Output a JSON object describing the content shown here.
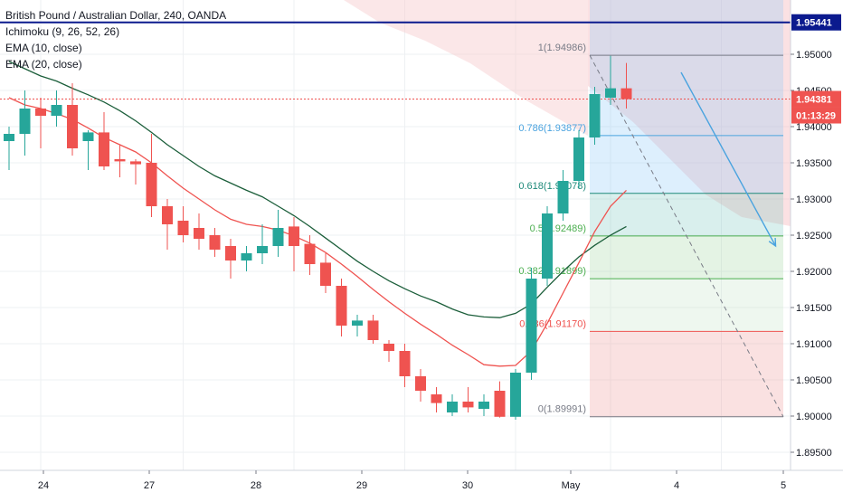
{
  "legend": {
    "title": "British Pound / Australian Dollar, 240, OANDA",
    "ichimoku": "Ichimoku (9, 26, 52, 26)",
    "ema10": "EMA (10, close)",
    "ema20": "EMA (20, close)"
  },
  "price_scale": {
    "ticks": [
      "1.95000",
      "1.94500",
      "1.94000",
      "1.93500",
      "1.93000",
      "1.92500",
      "1.92000",
      "1.91500",
      "1.91000",
      "1.90500",
      "1.90000",
      "1.89500"
    ],
    "tags": [
      {
        "label": "1.95441",
        "bg": "#0b1a8e",
        "fg": "#ffffff"
      },
      {
        "label": "1.94381",
        "bg": "#ef5350",
        "fg": "#ffffff"
      },
      {
        "label": "01:13:29",
        "bg": "#ef5350",
        "fg": "#ffffff"
      }
    ]
  },
  "time_scale": {
    "labels": [
      "24",
      "27",
      "28",
      "29",
      "30",
      "May",
      "4",
      "5"
    ]
  },
  "fib_labels": [
    {
      "text": "1(1.94986)",
      "color": "#787b86"
    },
    {
      "text": "0.786(1.93877)",
      "color": "#4aa3df"
    },
    {
      "text": "0.618(1.93078)",
      "color": "#1f8a7a"
    },
    {
      "text": "0.5(1.92489)",
      "color": "#4caf50"
    },
    {
      "text": "0.382(1.91899)",
      "color": "#4caf50"
    },
    {
      "text": "0.236(1.91170)",
      "color": "#ef5350"
    },
    {
      "text": "0(1.89991)",
      "color": "#787b86"
    }
  ],
  "colors": {
    "up": "#26a69a",
    "down": "#ef5350",
    "ema10": "#ef5350",
    "ema20": "#1b5e3a",
    "blue_line": "#0b1a8e",
    "arrow": "#4aa3df",
    "grid": "#eef0f3",
    "axis_text": "#131722"
  },
  "chart_data": {
    "type": "candlestick",
    "title": "British Pound / Australian Dollar, 240, OANDA",
    "timeframe": "240",
    "x_labels": [
      "24",
      "27",
      "28",
      "29",
      "30",
      "May",
      "4",
      "5"
    ],
    "ylim": [
      1.8925,
      1.9575
    ],
    "current_price": 1.94381,
    "countdown": "01:13:29",
    "horizontal_line": 1.95441,
    "candles": [
      {
        "o": 1.938,
        "h": 1.94,
        "l": 1.934,
        "c": 1.939
      },
      {
        "o": 1.939,
        "h": 1.945,
        "l": 1.936,
        "c": 1.9425
      },
      {
        "o": 1.9425,
        "h": 1.944,
        "l": 1.937,
        "c": 1.9415
      },
      {
        "o": 1.9415,
        "h": 1.945,
        "l": 1.94,
        "c": 1.943
      },
      {
        "o": 1.943,
        "h": 1.946,
        "l": 1.936,
        "c": 1.937
      },
      {
        "o": 1.938,
        "h": 1.9395,
        "l": 1.934,
        "c": 1.9392
      },
      {
        "o": 1.9392,
        "h": 1.942,
        "l": 1.934,
        "c": 1.9345
      },
      {
        "o": 1.9355,
        "h": 1.9375,
        "l": 1.933,
        "c": 1.9352
      },
      {
        "o": 1.9352,
        "h": 1.9355,
        "l": 1.932,
        "c": 1.9348
      },
      {
        "o": 1.935,
        "h": 1.939,
        "l": 1.9275,
        "c": 1.929
      },
      {
        "o": 1.929,
        "h": 1.93,
        "l": 1.923,
        "c": 1.9265
      },
      {
        "o": 1.927,
        "h": 1.929,
        "l": 1.924,
        "c": 1.925
      },
      {
        "o": 1.926,
        "h": 1.928,
        "l": 1.923,
        "c": 1.9245
      },
      {
        "o": 1.925,
        "h": 1.926,
        "l": 1.922,
        "c": 1.923
      },
      {
        "o": 1.9235,
        "h": 1.9245,
        "l": 1.919,
        "c": 1.9215
      },
      {
        "o": 1.9215,
        "h": 1.9235,
        "l": 1.92,
        "c": 1.9225
      },
      {
        "o": 1.9225,
        "h": 1.9265,
        "l": 1.921,
        "c": 1.9235
      },
      {
        "o": 1.9235,
        "h": 1.9285,
        "l": 1.922,
        "c": 1.926
      },
      {
        "o": 1.9262,
        "h": 1.9275,
        "l": 1.92,
        "c": 1.9235
      },
      {
        "o": 1.9238,
        "h": 1.925,
        "l": 1.9195,
        "c": 1.921
      },
      {
        "o": 1.9212,
        "h": 1.9225,
        "l": 1.917,
        "c": 1.918
      },
      {
        "o": 1.918,
        "h": 1.919,
        "l": 1.911,
        "c": 1.9125
      },
      {
        "o": 1.9125,
        "h": 1.914,
        "l": 1.911,
        "c": 1.9132
      },
      {
        "o": 1.9132,
        "h": 1.914,
        "l": 1.91,
        "c": 1.9105
      },
      {
        "o": 1.91,
        "h": 1.9105,
        "l": 1.9075,
        "c": 1.909
      },
      {
        "o": 1.909,
        "h": 1.91,
        "l": 1.904,
        "c": 1.9055
      },
      {
        "o": 1.9055,
        "h": 1.9065,
        "l": 1.902,
        "c": 1.9035
      },
      {
        "o": 1.903,
        "h": 1.904,
        "l": 1.9005,
        "c": 1.9018
      },
      {
        "o": 1.9005,
        "h": 1.903,
        "l": 1.9,
        "c": 1.902
      },
      {
        "o": 1.902,
        "h": 1.904,
        "l": 1.9005,
        "c": 1.9012
      },
      {
        "o": 1.901,
        "h": 1.903,
        "l": 1.9,
        "c": 1.902
      },
      {
        "o": 1.9035,
        "h": 1.9048,
        "l": 1.8998,
        "c": 1.8999
      },
      {
        "o": 1.8999,
        "h": 1.9065,
        "l": 1.8995,
        "c": 1.906
      },
      {
        "o": 1.906,
        "h": 1.9205,
        "l": 1.905,
        "c": 1.919
      },
      {
        "o": 1.919,
        "h": 1.929,
        "l": 1.918,
        "c": 1.928
      },
      {
        "o": 1.928,
        "h": 1.934,
        "l": 1.927,
        "c": 1.9325
      },
      {
        "o": 1.9325,
        "h": 1.9395,
        "l": 1.9315,
        "c": 1.9385
      },
      {
        "o": 1.9385,
        "h": 1.9455,
        "l": 1.9375,
        "c": 1.9445
      },
      {
        "o": 1.944,
        "h": 1.9498,
        "l": 1.943,
        "c": 1.9453
      },
      {
        "o": 1.9453,
        "h": 1.9488,
        "l": 1.9425,
        "c": 1.9438
      }
    ],
    "ema10": [
      1.944,
      1.943,
      1.9425,
      1.9418,
      1.941,
      1.9398,
      1.9385,
      1.9375,
      1.9365,
      1.935,
      1.9332,
      1.9315,
      1.93,
      1.9285,
      1.9272,
      1.9265,
      1.9262,
      1.9257,
      1.9249,
      1.9239,
      1.9226,
      1.921,
      1.9193,
      1.9175,
      1.9158,
      1.9142,
      1.9127,
      1.9113,
      1.9098,
      1.9085,
      1.9071,
      1.9069,
      1.907,
      1.909,
      1.9128,
      1.917,
      1.9212,
      1.9255,
      1.929,
      1.9312
    ],
    "ema20": [
      1.949,
      1.948,
      1.947,
      1.9463,
      1.9453,
      1.9444,
      1.9434,
      1.9422,
      1.9408,
      1.9392,
      1.9375,
      1.936,
      1.9345,
      1.9332,
      1.9322,
      1.9312,
      1.9303,
      1.929,
      1.9277,
      1.9262,
      1.9246,
      1.923,
      1.9214,
      1.92,
      1.9187,
      1.9176,
      1.9166,
      1.9158,
      1.9148,
      1.914,
      1.9137,
      1.9136,
      1.9142,
      1.9155,
      1.9178,
      1.92,
      1.922,
      1.9236,
      1.925,
      1.9262
    ],
    "fibonacci": [
      {
        "ratio": 1,
        "price": 1.94986
      },
      {
        "ratio": 0.786,
        "price": 1.93877
      },
      {
        "ratio": 0.618,
        "price": 1.93078
      },
      {
        "ratio": 0.5,
        "price": 1.92489
      },
      {
        "ratio": 0.382,
        "price": 1.91899
      },
      {
        "ratio": 0.236,
        "price": 1.9117
      },
      {
        "ratio": 0,
        "price": 1.89991
      }
    ],
    "projection_arrow": {
      "from_index": 46,
      "from_price": 1.9475,
      "to_index": 49,
      "to_price": 1.9235
    }
  }
}
